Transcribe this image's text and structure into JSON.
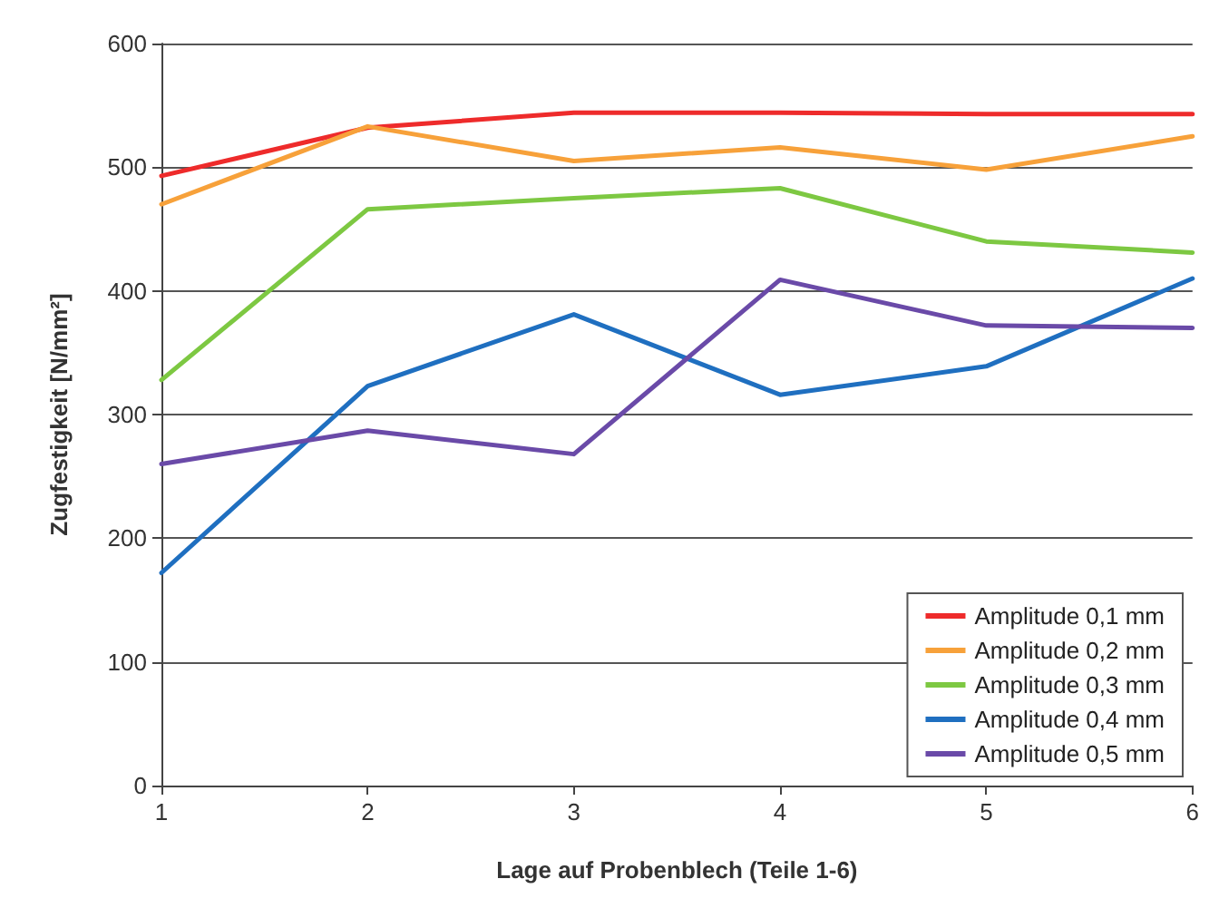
{
  "chart_data": {
    "type": "line",
    "xlabel": "Lage auf Probenblech (Teile 1-6)",
    "ylabel": "Zugfestigkeit [N/mm²]",
    "x": [
      1,
      2,
      3,
      4,
      5,
      6
    ],
    "xlim": [
      1,
      6
    ],
    "xticks": [
      1,
      2,
      3,
      4,
      5,
      6
    ],
    "ylim": [
      0,
      600
    ],
    "yticks": [
      0,
      100,
      200,
      300,
      400,
      500,
      600
    ],
    "series": [
      {
        "name": "Amplitude 0,1 mm",
        "color": "#ee2b2b",
        "values": [
          493,
          532,
          544,
          544,
          543,
          543
        ]
      },
      {
        "name": "Amplitude 0,2 mm",
        "color": "#f7a13a",
        "values": [
          470,
          533,
          505,
          516,
          498,
          525
        ]
      },
      {
        "name": "Amplitude 0,3 mm",
        "color": "#7dc842",
        "values": [
          328,
          466,
          475,
          483,
          440,
          431
        ]
      },
      {
        "name": "Amplitude 0,4 mm",
        "color": "#1f6fc0",
        "values": [
          172,
          323,
          381,
          316,
          339,
          410
        ]
      },
      {
        "name": "Amplitude 0,5 mm",
        "color": "#6a4aa8",
        "values": [
          260,
          287,
          268,
          409,
          372,
          370
        ]
      }
    ],
    "grid": "y",
    "legend": "bottom right",
    "marker": "none",
    "line_style": "solid"
  }
}
